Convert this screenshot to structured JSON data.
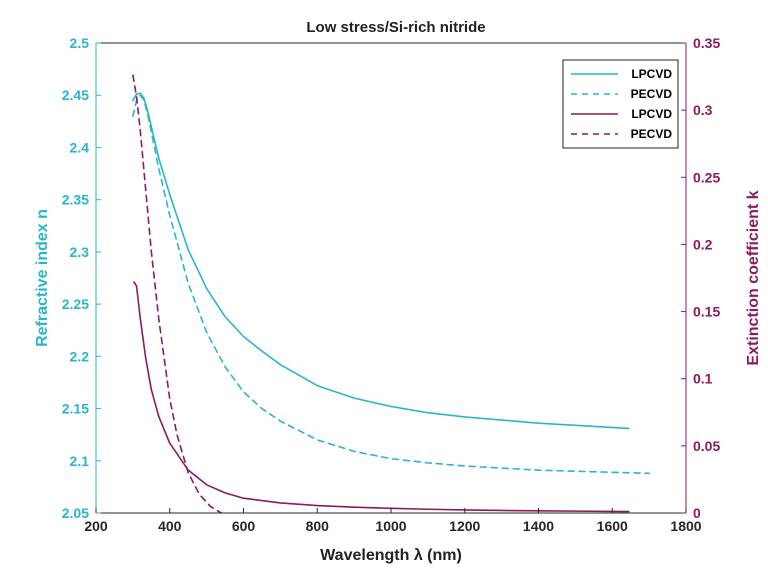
{
  "chart_data": {
    "type": "line",
    "title": "Low stress/Si-rich nitride",
    "xlabel": "Wavelength λ (nm)",
    "ylabel_left": "Refractive index  n",
    "ylabel_right": "Extinction coefficient  k",
    "xlim": [
      200,
      1800
    ],
    "ylim_left": [
      2.05,
      2.5
    ],
    "ylim_right": [
      0,
      0.35
    ],
    "x_ticks": [
      "200",
      "400",
      "600",
      "800",
      "1000",
      "1200",
      "1400",
      "1600",
      "1800"
    ],
    "y_left_ticks": [
      "2.05",
      "2.1",
      "2.15",
      "2.2",
      "2.25",
      "2.3",
      "2.35",
      "2.4",
      "2.45",
      "2.5"
    ],
    "y_right_ticks": [
      "0",
      "0.05",
      "0.1",
      "0.15",
      "0.2",
      "0.25",
      "0.3",
      "0.35"
    ],
    "grid": false,
    "legend_position": "top-right",
    "colors": {
      "n_axis": "#29b6cc",
      "k_axis": "#8b1a5e"
    },
    "series": [
      {
        "name": "LPCVD",
        "axis": "left",
        "style": "solid",
        "color": "#29b6cc",
        "x": [
          300,
          310,
          320,
          330,
          340,
          350,
          370,
          400,
          450,
          500,
          550,
          600,
          650,
          700,
          800,
          900,
          1000,
          1100,
          1200,
          1300,
          1400,
          1500,
          1645
        ],
        "y": [
          2.445,
          2.451,
          2.452,
          2.447,
          2.435,
          2.42,
          2.39,
          2.355,
          2.302,
          2.265,
          2.238,
          2.219,
          2.205,
          2.192,
          2.172,
          2.16,
          2.152,
          2.146,
          2.142,
          2.139,
          2.136,
          2.134,
          2.131
        ]
      },
      {
        "name": "PECVD",
        "axis": "left",
        "style": "dashed",
        "color": "#29b6cc",
        "x": [
          300,
          310,
          320,
          330,
          340,
          350,
          370,
          400,
          450,
          500,
          550,
          600,
          650,
          700,
          800,
          900,
          1000,
          1100,
          1200,
          1300,
          1400,
          1500,
          1600,
          1700
        ],
        "y": [
          2.43,
          2.445,
          2.45,
          2.445,
          2.432,
          2.415,
          2.38,
          2.335,
          2.27,
          2.223,
          2.19,
          2.166,
          2.15,
          2.138,
          2.12,
          2.109,
          2.102,
          2.098,
          2.095,
          2.093,
          2.091,
          2.09,
          2.089,
          2.088
        ]
      },
      {
        "name": "LPCVD",
        "axis": "right",
        "style": "solid",
        "color": "#8b1a5e",
        "x": [
          303,
          310,
          320,
          335,
          350,
          370,
          400,
          450,
          500,
          550,
          600,
          700,
          800,
          900,
          1000,
          1100,
          1200,
          1300,
          1400,
          1500,
          1645
        ],
        "y": [
          0.172,
          0.169,
          0.145,
          0.115,
          0.092,
          0.072,
          0.052,
          0.032,
          0.021,
          0.015,
          0.011,
          0.0075,
          0.0055,
          0.0043,
          0.0035,
          0.0028,
          0.0023,
          0.0019,
          0.0016,
          0.0014,
          0.0011
        ]
      },
      {
        "name": "PECVD",
        "axis": "right",
        "style": "dashed",
        "color": "#8b1a5e",
        "x": [
          300,
          310,
          320,
          330,
          340,
          350,
          370,
          400,
          420,
          450,
          480,
          510,
          540
        ],
        "y": [
          0.326,
          0.31,
          0.285,
          0.255,
          0.225,
          0.195,
          0.145,
          0.085,
          0.058,
          0.03,
          0.014,
          0.005,
          0.0
        ]
      }
    ]
  }
}
